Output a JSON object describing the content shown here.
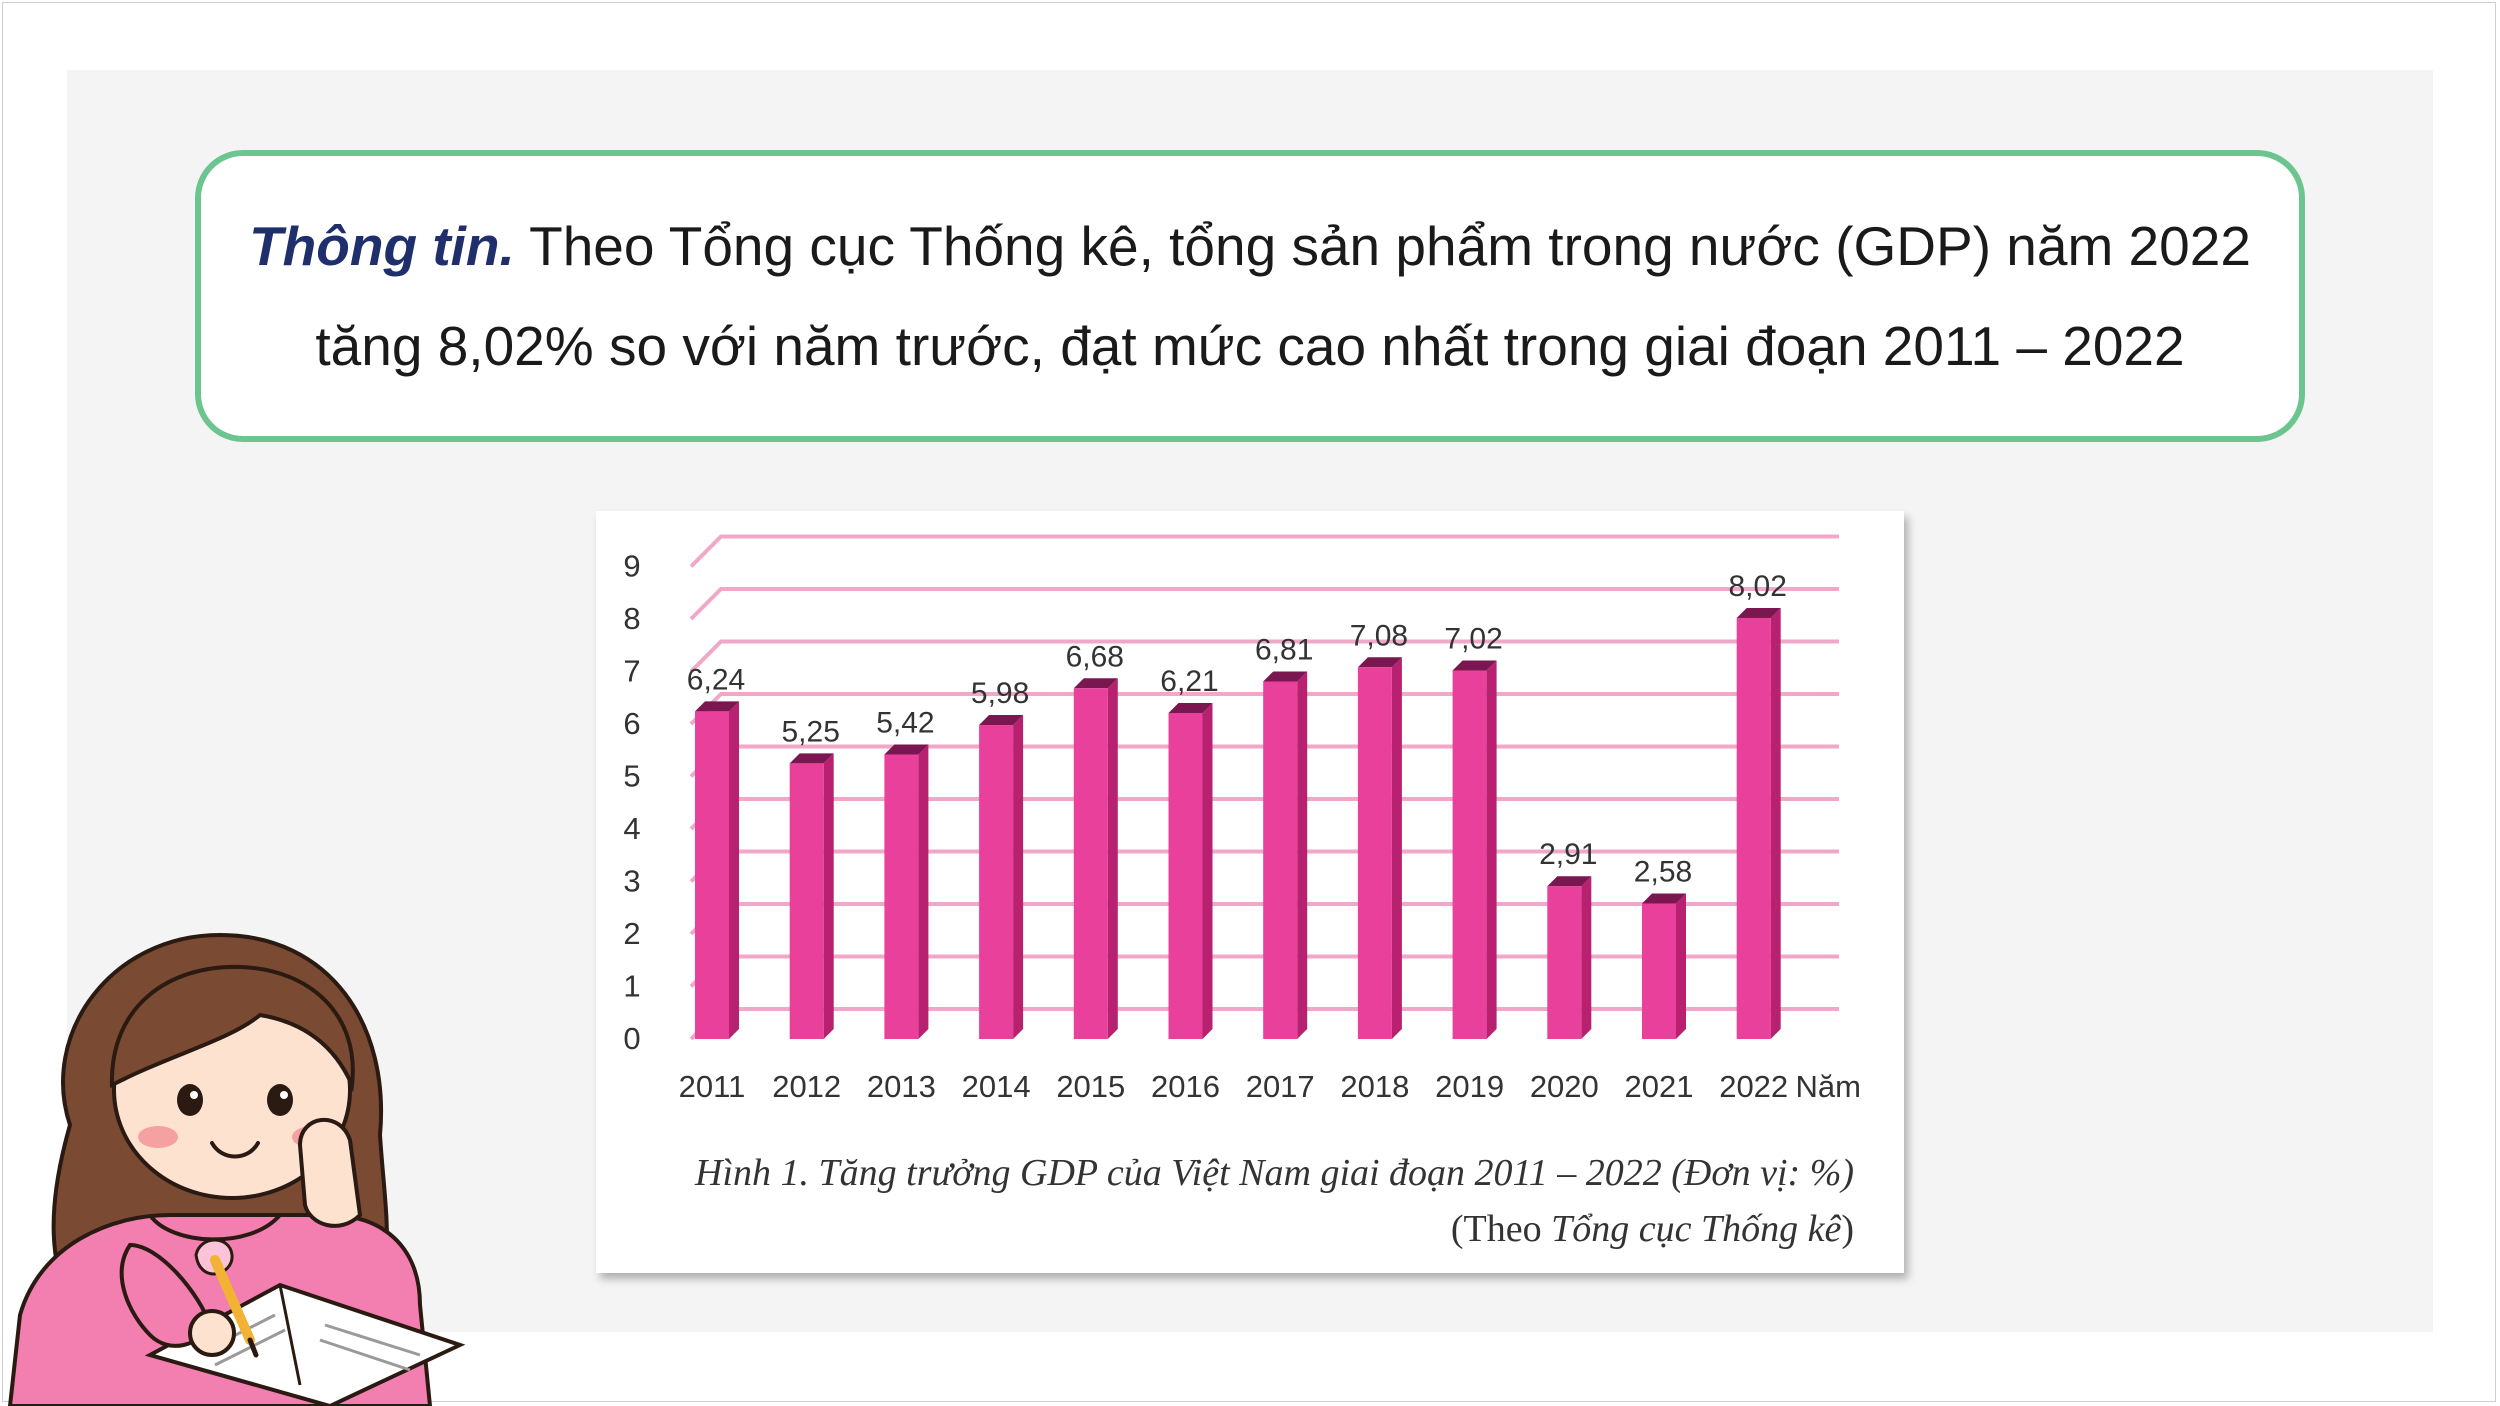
{
  "info": {
    "lead": "Thông tin.",
    "line1_rest": " Theo Tổng cục Thống kê, tổng sản phẩm trong nước (GDP) năm 2022",
    "line2": "tăng 8,02% so với năm trước, đạt mức cao nhất trong giai đoạn 2011 – 2022"
  },
  "caption": {
    "line1": "Hình 1. Tăng trưởng GDP của Việt Nam giai đoạn 2011 – 2022 (Đơn vị: %)",
    "source_open": "(Theo ",
    "source_name": "Tổng cục Thống kê",
    "source_close": ")"
  },
  "illustration": {
    "subject": "girl-writing-in-notebook"
  },
  "chart_data": {
    "type": "bar",
    "categories": [
      "2011",
      "2012",
      "2013",
      "2014",
      "2015",
      "2016",
      "2017",
      "2018",
      "2019",
      "2020",
      "2021",
      "2022"
    ],
    "values": [
      6.24,
      5.25,
      5.42,
      5.98,
      6.68,
      6.21,
      6.81,
      7.08,
      7.02,
      2.91,
      2.58,
      8.02
    ],
    "value_labels": [
      "6,24",
      "5,25",
      "5,42",
      "5,98",
      "6,68",
      "6,21",
      "6,81",
      "7,08",
      "7,02",
      "2,91",
      "2,58",
      "8,02"
    ],
    "xlabel": "Năm",
    "ylabel": "",
    "ylim": [
      0,
      9
    ],
    "yticks": [
      "0",
      "1",
      "2",
      "3",
      "4",
      "5",
      "6",
      "7",
      "8",
      "9"
    ],
    "grid": true,
    "style": "3d-bars",
    "colors": {
      "bar": "#e8409b",
      "bar_side": "#b8216f",
      "bar_top": "#7a1650",
      "grid": "#f0a7c8"
    }
  }
}
